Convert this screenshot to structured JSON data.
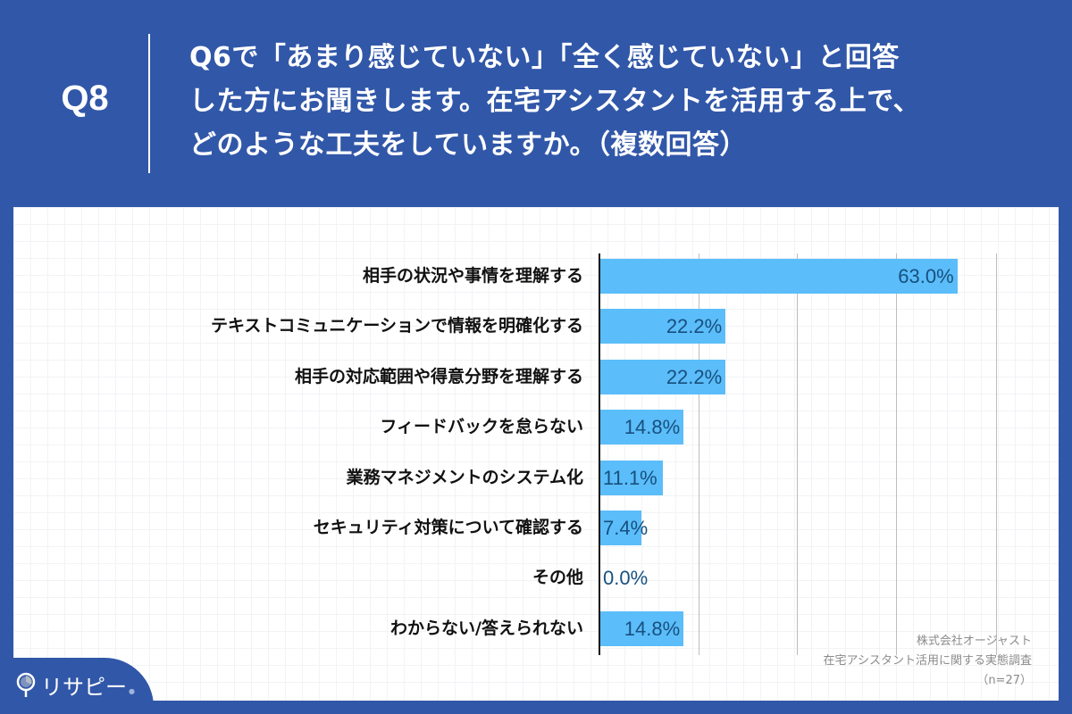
{
  "header": {
    "question_number": "Q8",
    "question_lines": [
      "Q6で「あまり感じていない」「全く感じていない」と回答",
      "した方にお聞きします。在宅アシスタントを活用する上で、",
      "どのような工夫をしていますか。（複数回答）"
    ]
  },
  "colors": {
    "background": "#3157a8",
    "bar": "#5bbdf9",
    "value_text": "#17507f"
  },
  "chart_data": {
    "type": "bar",
    "orientation": "horizontal",
    "title": "Q6で「あまり感じていない」「全く感じていない」と回答した方にお聞きします。在宅アシスタントを活用する上で、どのような工夫をしていますか。（複数回答）",
    "categories": [
      "相手の状況や事情を理解する",
      "テキストコミュニケーションで情報を明確化する",
      "相手の対応範囲や得意分野を理解する",
      "フィードバックを怠らない",
      "業務マネジメントのシステム化",
      "セキュリティ対策について確認する",
      "その他",
      "わからない/答えられない"
    ],
    "values": [
      63.0,
      22.2,
      22.2,
      14.8,
      11.1,
      7.4,
      0.0,
      14.8
    ],
    "value_labels": [
      "63.0%",
      "22.2%",
      "22.2%",
      "14.8%",
      "11.1%",
      "7.4%",
      "0.0%",
      "14.8%"
    ],
    "unit": "%",
    "xlabel": "",
    "ylabel": "",
    "xlim": [
      0,
      80
    ],
    "grid": true,
    "legend": null,
    "sample_size": "n=27"
  },
  "source": {
    "company": "株式会社オージャスト",
    "survey": "在宅アシスタント活用に関する実態調査",
    "sample": "（n=27）"
  },
  "logo": {
    "text": "リサピー"
  }
}
